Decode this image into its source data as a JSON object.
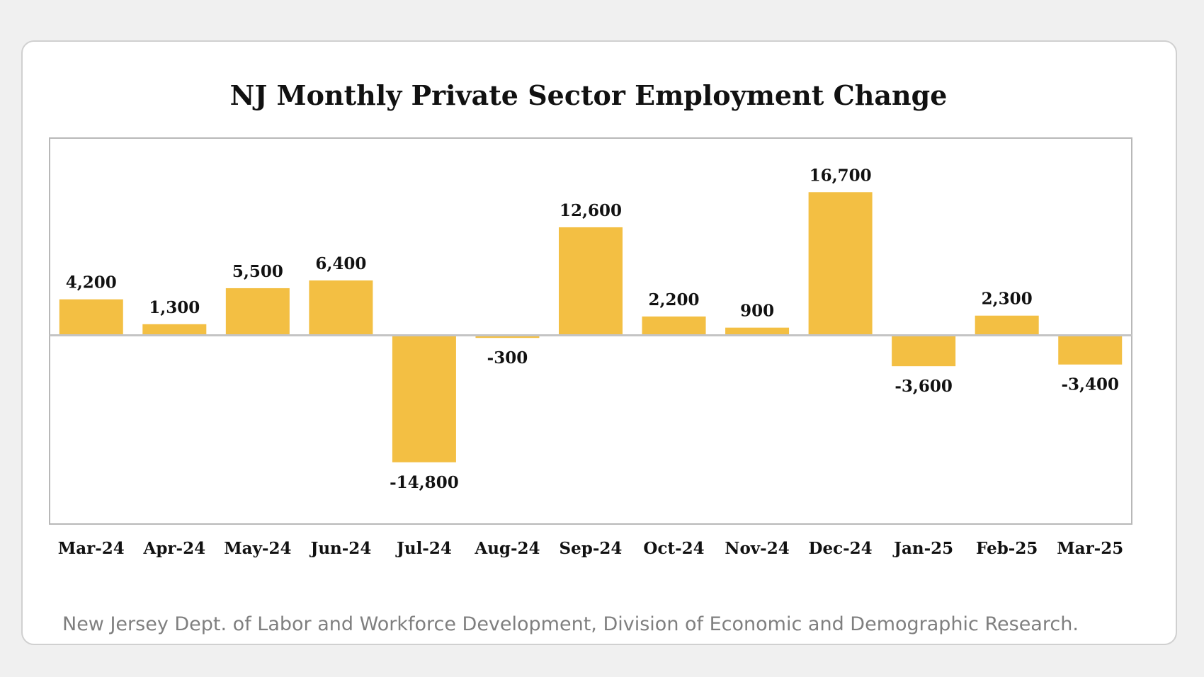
{
  "chart_data": {
    "type": "bar",
    "title": "NJ Monthly Private Sector Employment Change",
    "categories": [
      "Mar-24",
      "Apr-24",
      "May-24",
      "Jun-24",
      "Jul-24",
      "Aug-24",
      "Sep-24",
      "Oct-24",
      "Nov-24",
      "Dec-24",
      "Jan-25",
      "Feb-25",
      "Mar-25"
    ],
    "values": [
      4200,
      1300,
      5500,
      6400,
      -14800,
      -300,
      12600,
      2200,
      900,
      16700,
      -3600,
      2300,
      -3400
    ],
    "value_labels": [
      "4,200",
      "1,300",
      "5,500",
      "6,400",
      "-14,800",
      "-300",
      "12,600",
      "2,200",
      "900",
      "16,700",
      "-3,600",
      "2,300",
      "-3,400"
    ],
    "xlabel": "",
    "ylabel": "",
    "ylim": [
      -22000,
      23000
    ],
    "grid": false,
    "bar_color": "#f3bf43"
  },
  "source_note": "New Jersey Dept. of Labor and Workforce Development, Division of Economic and Demographic Research."
}
